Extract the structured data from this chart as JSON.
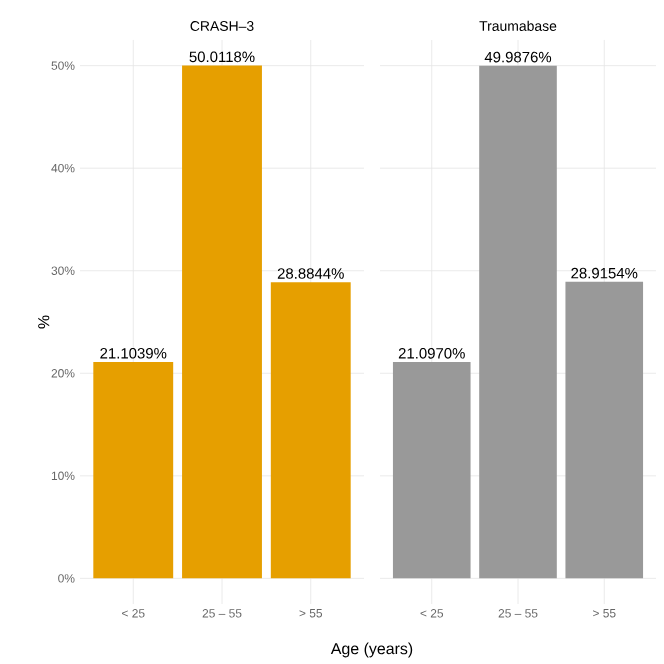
{
  "chart_data": [
    {
      "type": "bar",
      "title": "CRASH–3",
      "xlabel": "Age (years)",
      "ylabel": "%",
      "categories": [
        "< 25",
        "25 – 55",
        "> 55"
      ],
      "values": [
        21.1039,
        50.0118,
        28.8844
      ],
      "value_labels": [
        "21.1039%",
        "50.0118%",
        "28.8844%"
      ],
      "color": "#e69f00",
      "ylim": [
        -2.5,
        52.5
      ],
      "yticks": [
        {
          "value": 0,
          "label": "0%"
        },
        {
          "value": 10,
          "label": "10%"
        },
        {
          "value": 20,
          "label": "20%"
        },
        {
          "value": 30,
          "label": "30%"
        },
        {
          "value": 40,
          "label": "40%"
        },
        {
          "value": 50,
          "label": "50%"
        }
      ],
      "grid": true
    },
    {
      "type": "bar",
      "title": "Traumabase",
      "categories": [
        "< 25",
        "25 – 55",
        "> 55"
      ],
      "values": [
        21.097,
        49.9876,
        28.9154
      ],
      "value_labels": [
        "21.0970%",
        "49.9876%",
        "28.9154%"
      ],
      "color": "#999999",
      "ylim": [
        -2.5,
        52.5
      ],
      "yticks": [
        0,
        10,
        20,
        30,
        40,
        50
      ],
      "grid": true,
      "tick_labels": "x"
    }
  ]
}
